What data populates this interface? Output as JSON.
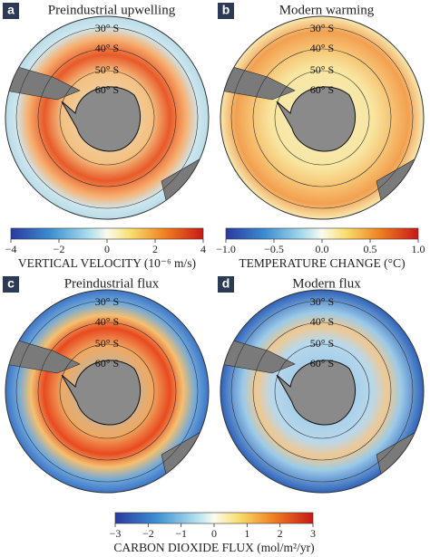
{
  "panels": [
    {
      "letter": "a",
      "title": "Preindustrial upwelling",
      "lat_labels": [
        "30° S",
        "40° S",
        "50° S",
        "60° S"
      ]
    },
    {
      "letter": "b",
      "title": "Modern warming",
      "lat_labels": [
        "30° S",
        "40° S",
        "50° S",
        "60° S"
      ]
    },
    {
      "letter": "c",
      "title": "Preindustrial flux",
      "lat_labels": [
        "30° S",
        "40° S",
        "50° S",
        "60° S"
      ]
    },
    {
      "letter": "d",
      "title": "Modern flux",
      "lat_labels": [
        "30° S",
        "40° S",
        "50° S",
        "60° S"
      ]
    }
  ],
  "colorbars": [
    {
      "label": "VERTICAL VELOCITY (10⁻⁶ m/s)",
      "range": [
        -4,
        4
      ],
      "ticks": [
        {
          "value": -4,
          "label": "−4"
        },
        {
          "value": -2,
          "label": "−2"
        },
        0,
        2,
        4
      ]
    },
    {
      "label": "TEMPERATURE CHANGE (°C)",
      "range": [
        -1,
        1
      ],
      "ticks": [
        {
          "value": -1,
          "label": "−1.0"
        },
        {
          "value": -0.5,
          "label": "−0.5"
        },
        {
          "value": 0,
          "label": "0.0"
        },
        0.5,
        {
          "value": 1,
          "label": "1.0"
        }
      ]
    },
    {
      "label": "CARBON DIOXIDE FLUX (mol/m²/yr)",
      "range": [
        -3,
        3
      ],
      "ticks": [
        {
          "value": -3,
          "label": "−3"
        },
        {
          "value": -2,
          "label": "−2"
        },
        {
          "value": -1,
          "label": "−1"
        },
        0,
        1,
        2,
        3
      ]
    }
  ]
}
